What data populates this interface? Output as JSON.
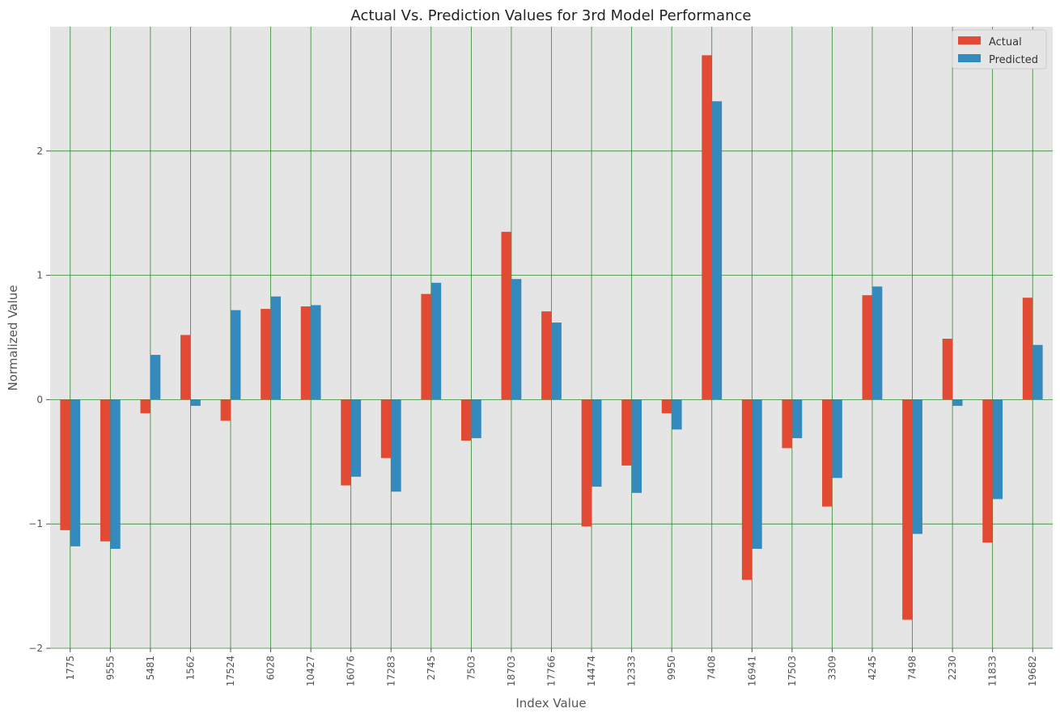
{
  "chart_data": {
    "type": "bar",
    "title": "Actual Vs. Prediction Values for 3rd Model Performance",
    "xlabel": "Index Value",
    "ylabel": "Normalized Value",
    "ylim": [
      -2,
      3
    ],
    "yticks": [
      -2,
      -1,
      0,
      1,
      2
    ],
    "ytick_labels": [
      "−2",
      "−1",
      "0",
      "1",
      "2"
    ],
    "grid": true,
    "legend_position": "top-right",
    "categories": [
      "1775",
      "9555",
      "5481",
      "1562",
      "17524",
      "6028",
      "10427",
      "16076",
      "17283",
      "2745",
      "7503",
      "18703",
      "17766",
      "14474",
      "12333",
      "9950",
      "7408",
      "16941",
      "17503",
      "3309",
      "4245",
      "7498",
      "2230",
      "11833",
      "19682"
    ],
    "series": [
      {
        "name": "Actual",
        "color": "#E24A33",
        "values": [
          -1.05,
          -1.14,
          -0.11,
          0.52,
          -0.17,
          0.73,
          0.75,
          -0.69,
          -0.47,
          0.85,
          -0.33,
          1.35,
          0.71,
          -1.02,
          -0.53,
          -0.11,
          2.77,
          -1.45,
          -0.39,
          -0.86,
          0.84,
          -1.77,
          0.49,
          -1.15,
          0.82
        ]
      },
      {
        "name": "Predicted",
        "color": "#348ABD",
        "values": [
          -1.18,
          -1.2,
          0.36,
          -0.05,
          0.72,
          0.83,
          0.76,
          -0.62,
          -0.74,
          0.94,
          -0.31,
          0.97,
          0.62,
          -0.7,
          -0.75,
          -0.24,
          2.4,
          -1.2,
          -0.31,
          -0.63,
          0.91,
          -1.08,
          -0.05,
          -0.8,
          0.44
        ]
      }
    ]
  },
  "colors": {
    "plot_background": "#E5E5E5",
    "grid": "#2E8B2E"
  }
}
